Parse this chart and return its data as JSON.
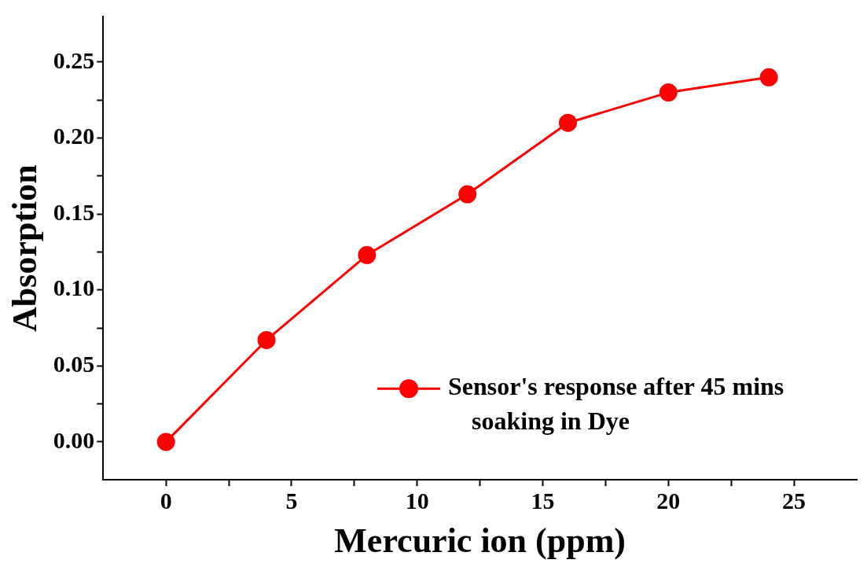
{
  "chart_data": {
    "type": "line",
    "xlabel": "Mercuric ion (ppm)",
    "ylabel": "Absorption",
    "x": [
      0,
      4,
      8,
      12,
      16,
      20,
      24
    ],
    "series": [
      {
        "name": "Sensor's response after 45 mins soaking in Dye",
        "color": "#ff0000",
        "values": [
          0,
          0.067,
          0.123,
          0.163,
          0.21,
          0.23,
          0.24
        ]
      }
    ],
    "xlim": [
      -2.5,
      27.5
    ],
    "xticks": [
      0,
      {
        "value": 2.5,
        "label": null
      },
      5,
      {
        "value": 7.5,
        "label": null
      },
      10,
      {
        "value": 12.5,
        "label": null
      },
      15,
      {
        "value": 17.5,
        "label": null
      },
      20,
      {
        "value": 22.5,
        "label": null
      },
      25
    ],
    "ylim": [
      -0.025,
      0.28
    ],
    "yticks": [
      {
        "value": 0,
        "label": "0.00"
      },
      {
        "value": 0.025,
        "label": null
      },
      {
        "value": 0.05,
        "label": "0.05"
      },
      {
        "value": 0.075,
        "label": null
      },
      {
        "value": 0.1,
        "label": "0.10"
      },
      {
        "value": 0.125,
        "label": null
      },
      {
        "value": 0.15,
        "label": "0.15"
      },
      {
        "value": 0.175,
        "label": null
      },
      {
        "value": 0.2,
        "label": "0.20"
      },
      {
        "value": 0.225,
        "label": null
      },
      {
        "value": 0.25,
        "label": "0.25"
      }
    ],
    "grid": false,
    "legend": "bottom right",
    "marker": "circle",
    "line_style": "solid"
  }
}
